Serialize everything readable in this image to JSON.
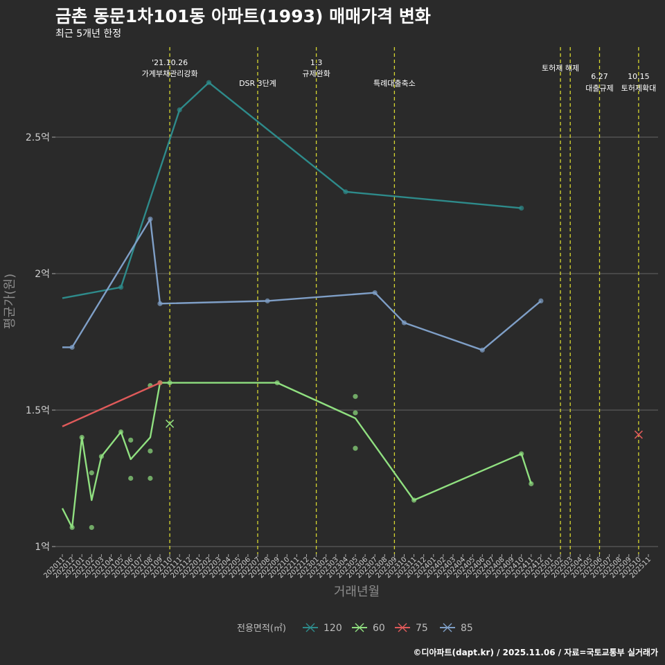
{
  "header": {
    "title": "금촌 동문1차101동 아파트(1993) 매매가격 변화",
    "subtitle": "최근 5개년 한정",
    "credit": "©디아파트(dapt.kr) / 2025.11.06 / 자료=국토교통부 실거래가"
  },
  "chart_data": {
    "type": "line",
    "xlabel": "거래년월",
    "ylabel": "평균가(원)",
    "ylim": [
      1.0,
      2.86
    ],
    "y_ticks": [
      {
        "value": 1.0,
        "label": "1억"
      },
      {
        "value": 1.5,
        "label": "1.5억"
      },
      {
        "value": 2.0,
        "label": "2억"
      },
      {
        "value": 2.5,
        "label": "2.5억"
      }
    ],
    "x_categories": [
      "202011",
      "202012",
      "202101",
      "202102",
      "202103",
      "202104",
      "202105",
      "202106",
      "202107",
      "202108",
      "202109",
      "202110",
      "202111",
      "202112",
      "202201",
      "202202",
      "202203",
      "202204",
      "202205",
      "202206",
      "202207",
      "202208",
      "202209",
      "202210",
      "202211",
      "202212",
      "202301",
      "202302",
      "202303",
      "202304",
      "202305",
      "202306",
      "202307",
      "202308",
      "202309",
      "202310",
      "202311",
      "202312",
      "202401",
      "202402",
      "202403",
      "202404",
      "202405",
      "202406",
      "202407",
      "202408",
      "202409",
      "202410",
      "202411",
      "202412",
      "202501",
      "202502",
      "202503",
      "202504",
      "202505",
      "202506",
      "202507",
      "202508",
      "202509",
      "202510",
      "202511"
    ],
    "x_labels": [
      "202011",
      "202012",
      "202101",
      "202102",
      "202103",
      "202104",
      "202105",
      "202106",
      "202107",
      "202108",
      "202109",
      "202110",
      "202111",
      "202112",
      "202201",
      "202202",
      "202203",
      "202204",
      "202205",
      "202206",
      "202207",
      "202208",
      "202209",
      "202210",
      "202211",
      "202212",
      "202301",
      "202302",
      "202303",
      "202304",
      "202305",
      "202306",
      "202307",
      "202308",
      "202309",
      "202310",
      "202311",
      "202312",
      "202401",
      "202402",
      "202403",
      "202404",
      "202405",
      "202406",
      "202407",
      "202408",
      "202409",
      "202410",
      "202411",
      "202412",
      "202501",
      "202502",
      "202503",
      "202504",
      "202505",
      "202506",
      "202507",
      "202508",
      "202509",
      "202510",
      "202511"
    ],
    "events": [
      {
        "month": "202110",
        "line1": "'21.10.26",
        "line2": "가계부채관리강화",
        "level": "high"
      },
      {
        "month": "202207",
        "line1": "DSR 3단계",
        "line2": "",
        "level": "low"
      },
      {
        "month": "202301",
        "line1": "1.3",
        "line2": "규제완화",
        "level": "high"
      },
      {
        "month": "202309",
        "line1": "특례대출축소",
        "line2": "",
        "level": "low"
      },
      {
        "month": "202502",
        "line1": "토허제 해제",
        "line2": "",
        "level": "mid"
      },
      {
        "month": "202503",
        "line1": "",
        "line2": "",
        "level": "none"
      },
      {
        "month": "202506",
        "line1": "6.27",
        "line2": "대출규제",
        "level": "mid2"
      },
      {
        "month": "202510",
        "line1": "10.15",
        "line2": "토허제확대",
        "level": "mid2"
      }
    ],
    "legend_title": "전용면적(㎡)",
    "series": [
      {
        "name": "120",
        "color": "#2e8b8b",
        "line": [
          [
            "202011",
            1.91
          ],
          [
            "202105",
            1.95
          ],
          [
            "202111",
            2.6
          ],
          [
            "202202",
            2.7
          ],
          [
            "202304",
            2.3
          ],
          [
            "202410",
            2.24
          ]
        ],
        "points": [
          [
            "202105",
            1.95
          ],
          [
            "202111",
            2.6
          ],
          [
            "202202",
            2.7
          ],
          [
            "202304",
            2.3
          ],
          [
            "202410",
            2.24
          ]
        ],
        "cross": []
      },
      {
        "name": "60",
        "color": "#90e080",
        "line": [
          [
            "202011",
            1.14
          ],
          [
            "202012",
            1.07
          ],
          [
            "202101",
            1.4
          ],
          [
            "202102",
            1.17
          ],
          [
            "202103",
            1.33
          ],
          [
            "202105",
            1.42
          ],
          [
            "202106",
            1.32
          ],
          [
            "202108",
            1.4
          ],
          [
            "202109",
            1.6
          ],
          [
            "202110",
            1.6
          ],
          [
            "202209",
            1.6
          ],
          [
            "202305",
            1.47
          ],
          [
            "202311",
            1.17
          ],
          [
            "202410",
            1.34
          ],
          [
            "202411",
            1.23
          ]
        ],
        "points": [
          [
            "202012",
            1.07
          ],
          [
            "202101",
            1.4
          ],
          [
            "202102",
            1.27
          ],
          [
            "202102",
            1.07
          ],
          [
            "202103",
            1.33
          ],
          [
            "202105",
            1.42
          ],
          [
            "202106",
            1.39
          ],
          [
            "202106",
            1.25
          ],
          [
            "202108",
            1.59
          ],
          [
            "202108",
            1.35
          ],
          [
            "202108",
            1.25
          ],
          [
            "202109",
            1.6
          ],
          [
            "202110",
            1.6
          ],
          [
            "202209",
            1.6
          ],
          [
            "202305",
            1.55
          ],
          [
            "202305",
            1.49
          ],
          [
            "202305",
            1.36
          ],
          [
            "202311",
            1.17
          ],
          [
            "202410",
            1.34
          ],
          [
            "202411",
            1.23
          ]
        ],
        "cross": [
          [
            "202110",
            1.45
          ]
        ]
      },
      {
        "name": "75",
        "color": "#e05a5a",
        "line": [
          [
            "202011",
            1.44
          ],
          [
            "202109",
            1.6
          ]
        ],
        "points": [
          [
            "202109",
            1.6
          ]
        ],
        "cross": [
          [
            "202510",
            1.41
          ]
        ]
      },
      {
        "name": "85",
        "color": "#7f9fc7",
        "line": [
          [
            "202011",
            1.73
          ],
          [
            "202012",
            1.73
          ],
          [
            "202108",
            2.2
          ],
          [
            "202109",
            1.89
          ],
          [
            "202208",
            1.9
          ],
          [
            "202307",
            1.93
          ],
          [
            "202310",
            1.82
          ],
          [
            "202406",
            1.72
          ],
          [
            "202412",
            1.9
          ]
        ],
        "points": [
          [
            "202012",
            1.73
          ],
          [
            "202108",
            2.2
          ],
          [
            "202109",
            1.89
          ],
          [
            "202208",
            1.9
          ],
          [
            "202307",
            1.93
          ],
          [
            "202310",
            1.82
          ],
          [
            "202406",
            1.72
          ],
          [
            "202412",
            1.9
          ]
        ],
        "cross": []
      }
    ]
  }
}
